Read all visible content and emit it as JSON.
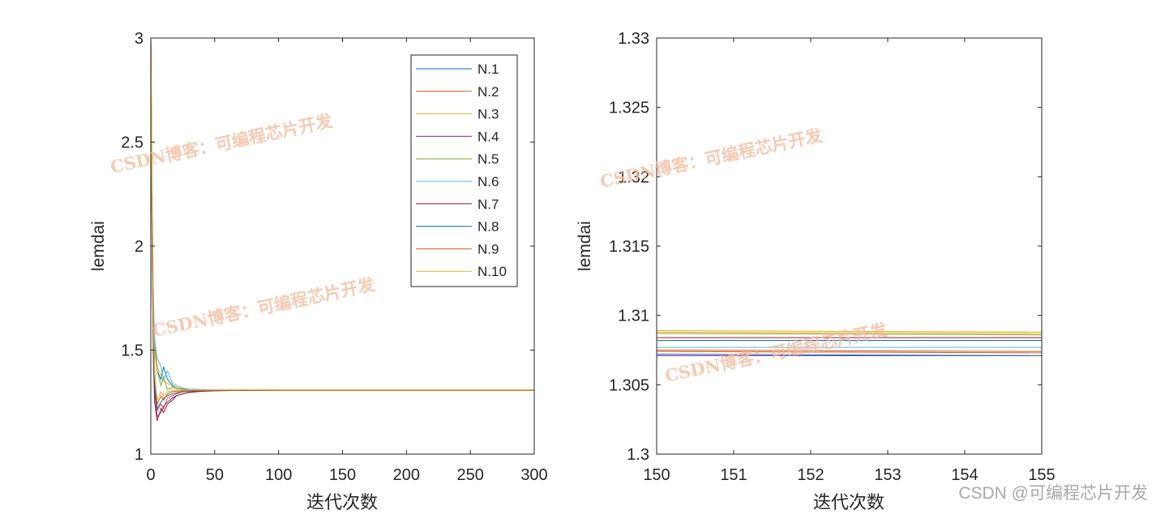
{
  "chart_data": [
    {
      "type": "line",
      "xlabel": "迭代次数",
      "ylabel": "lemdai",
      "xlim": [
        0,
        300
      ],
      "ylim": [
        1,
        3
      ],
      "xticks": [
        0,
        50,
        100,
        150,
        200,
        250,
        300
      ],
      "yticks": [
        1,
        1.5,
        2,
        2.5,
        3
      ],
      "ytick_labels": [
        "1",
        "1.5",
        "2",
        "2.5",
        "3"
      ],
      "legend": "top-right",
      "series": [
        {
          "name": "N.1",
          "color": "#0072BD",
          "x": [
            0,
            1,
            2,
            3,
            5,
            8,
            10,
            13,
            17,
            20,
            25,
            30,
            40,
            50,
            70,
            100,
            150,
            300
          ],
          "y": [
            3.0,
            2.2,
            1.7,
            1.55,
            1.4,
            1.36,
            1.42,
            1.36,
            1.33,
            1.32,
            1.312,
            1.31,
            1.309,
            1.309,
            1.308,
            1.308,
            1.308,
            1.308
          ]
        },
        {
          "name": "N.2",
          "color": "#D95319",
          "x": [
            0,
            1,
            2,
            3,
            5,
            8,
            10,
            13,
            17,
            20,
            25,
            30,
            40,
            50,
            70,
            100,
            150,
            300
          ],
          "y": [
            3.0,
            2.1,
            1.6,
            1.35,
            1.21,
            1.24,
            1.22,
            1.27,
            1.28,
            1.29,
            1.3,
            1.303,
            1.305,
            1.306,
            1.307,
            1.307,
            1.307,
            1.307
          ]
        },
        {
          "name": "N.3",
          "color": "#EDB120",
          "x": [
            0,
            1,
            2,
            3,
            5,
            8,
            10,
            13,
            17,
            20,
            25,
            30,
            40,
            50,
            70,
            100,
            150,
            300
          ],
          "y": [
            3.0,
            2.3,
            1.75,
            1.55,
            1.42,
            1.38,
            1.35,
            1.34,
            1.325,
            1.32,
            1.315,
            1.312,
            1.31,
            1.309,
            1.309,
            1.309,
            1.309,
            1.309
          ]
        },
        {
          "name": "N.4",
          "color": "#7E2F8E",
          "x": [
            0,
            1,
            2,
            3,
            5,
            8,
            10,
            13,
            17,
            20,
            25,
            30,
            40,
            50,
            70,
            100,
            150,
            300
          ],
          "y": [
            3.0,
            2.0,
            1.5,
            1.3,
            1.18,
            1.2,
            1.23,
            1.25,
            1.27,
            1.28,
            1.29,
            1.298,
            1.302,
            1.304,
            1.306,
            1.307,
            1.307,
            1.307
          ]
        },
        {
          "name": "N.5",
          "color": "#77AC30",
          "x": [
            0,
            1,
            2,
            3,
            5,
            8,
            10,
            13,
            17,
            20,
            25,
            30,
            40,
            50,
            70,
            100,
            150,
            300
          ],
          "y": [
            3.0,
            2.2,
            1.7,
            1.5,
            1.4,
            1.33,
            1.37,
            1.31,
            1.32,
            1.315,
            1.312,
            1.31,
            1.309,
            1.309,
            1.309,
            1.309,
            1.309,
            1.309
          ]
        },
        {
          "name": "N.6",
          "color": "#4DBEEE",
          "x": [
            0,
            1,
            2,
            3,
            5,
            8,
            10,
            13,
            17,
            20,
            25,
            30,
            40,
            50,
            70,
            100,
            150,
            300
          ],
          "y": [
            3.0,
            2.25,
            1.75,
            1.55,
            1.46,
            1.42,
            1.36,
            1.4,
            1.34,
            1.33,
            1.318,
            1.312,
            1.31,
            1.309,
            1.308,
            1.308,
            1.308,
            1.308
          ]
        },
        {
          "name": "N.7",
          "color": "#A2142F",
          "x": [
            0,
            1,
            2,
            3,
            5,
            8,
            10,
            13,
            17,
            20,
            25,
            30,
            40,
            50,
            70,
            100,
            150,
            300
          ],
          "y": [
            3.0,
            1.95,
            1.45,
            1.25,
            1.16,
            1.22,
            1.2,
            1.24,
            1.26,
            1.28,
            1.29,
            1.296,
            1.302,
            1.305,
            1.306,
            1.307,
            1.307,
            1.307
          ]
        },
        {
          "name": "N.8",
          "color": "#0072BD",
          "x": [
            0,
            1,
            2,
            3,
            5,
            8,
            10,
            13,
            17,
            20,
            25,
            30,
            40,
            50,
            70,
            100,
            150,
            300
          ],
          "y": [
            3.0,
            2.05,
            1.55,
            1.32,
            1.22,
            1.25,
            1.27,
            1.28,
            1.29,
            1.295,
            1.3,
            1.303,
            1.305,
            1.306,
            1.307,
            1.307,
            1.307,
            1.307
          ]
        },
        {
          "name": "N.9",
          "color": "#D95319",
          "x": [
            0,
            1,
            2,
            3,
            5,
            8,
            10,
            13,
            17,
            20,
            25,
            30,
            40,
            50,
            70,
            100,
            150,
            300
          ],
          "y": [
            3.0,
            2.15,
            1.65,
            1.4,
            1.24,
            1.28,
            1.26,
            1.29,
            1.3,
            1.302,
            1.304,
            1.305,
            1.306,
            1.307,
            1.307,
            1.307,
            1.307,
            1.307
          ]
        },
        {
          "name": "N.10",
          "color": "#EDB120",
          "x": [
            0,
            1,
            2,
            3,
            5,
            8,
            10,
            13,
            17,
            20,
            25,
            30,
            40,
            50,
            70,
            100,
            150,
            300
          ],
          "y": [
            3.0,
            2.1,
            1.62,
            1.38,
            1.26,
            1.3,
            1.28,
            1.3,
            1.305,
            1.307,
            1.308,
            1.308,
            1.308,
            1.308,
            1.308,
            1.308,
            1.308,
            1.308
          ]
        }
      ]
    },
    {
      "type": "line",
      "xlabel": "迭代次数",
      "ylabel": "lemdai",
      "xlim": [
        150,
        155
      ],
      "ylim": [
        1.3,
        1.33
      ],
      "xticks": [
        150,
        151,
        152,
        153,
        154,
        155
      ],
      "yticks": [
        1.3,
        1.305,
        1.31,
        1.315,
        1.32,
        1.325,
        1.33
      ],
      "ytick_labels": [
        "1.3",
        "1.305",
        "1.31",
        "1.315",
        "1.32",
        "1.325",
        "1.33"
      ],
      "series": [
        {
          "name": "N.1",
          "color": "#0072BD",
          "x": [
            150,
            155
          ],
          "y": [
            1.3082,
            1.3082
          ]
        },
        {
          "name": "N.2",
          "color": "#D95319",
          "x": [
            150,
            155
          ],
          "y": [
            1.3074,
            1.3073
          ]
        },
        {
          "name": "N.3",
          "color": "#EDB120",
          "x": [
            150,
            155
          ],
          "y": [
            1.3089,
            1.3088
          ]
        },
        {
          "name": "N.4",
          "color": "#7E2F8E",
          "x": [
            150,
            155
          ],
          "y": [
            1.3071,
            1.3071
          ]
        },
        {
          "name": "N.5",
          "color": "#77AC30",
          "x": [
            150,
            155
          ],
          "y": [
            1.3087,
            1.3086
          ]
        },
        {
          "name": "N.6",
          "color": "#4DBEEE",
          "x": [
            150,
            155
          ],
          "y": [
            1.3077,
            1.3077
          ]
        },
        {
          "name": "N.7",
          "color": "#A2142F",
          "x": [
            150,
            155
          ],
          "y": [
            1.3084,
            1.3084
          ]
        },
        {
          "name": "N.8",
          "color": "#0072BD",
          "x": [
            150,
            155
          ],
          "y": [
            1.3072,
            1.3071
          ]
        },
        {
          "name": "N.9",
          "color": "#D95319",
          "x": [
            150,
            155
          ],
          "y": [
            1.3075,
            1.3074
          ]
        },
        {
          "name": "N.10",
          "color": "#EDB120",
          "x": [
            150,
            155
          ],
          "y": [
            1.3088,
            1.3087
          ]
        }
      ]
    }
  ],
  "watermark_text": "CSDN博客：可编程芯片开发",
  "footer_text": "CSDN @可编程芯片开发"
}
